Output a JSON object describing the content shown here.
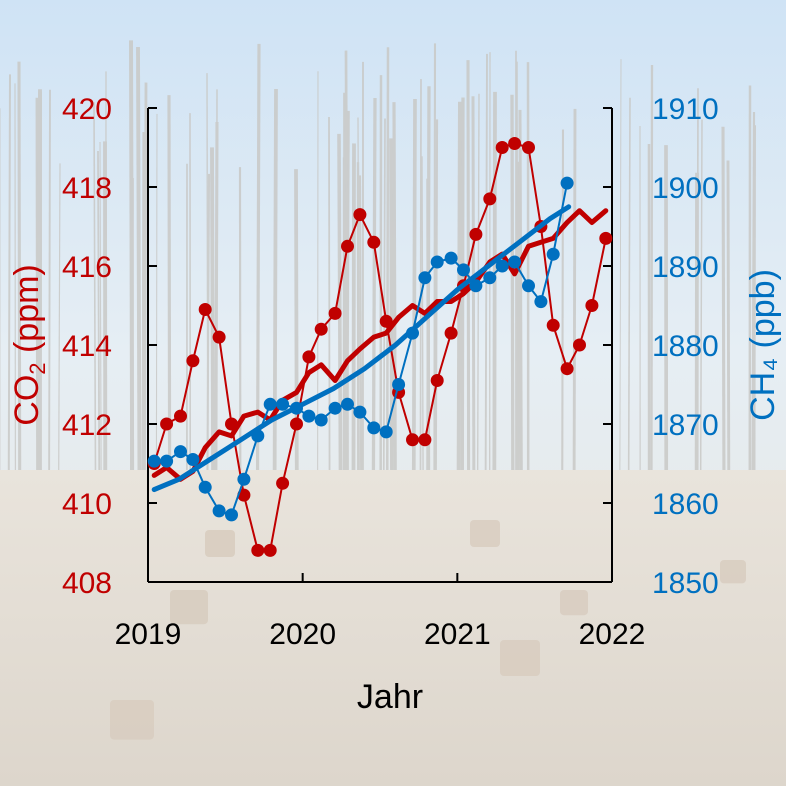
{
  "chart_data": {
    "type": "line",
    "xlabel": "Jahr",
    "xlim": [
      2019,
      2022
    ],
    "xticks": [
      2019,
      2020,
      2021,
      2022
    ],
    "y_left": {
      "label_main": "CO",
      "label_sub": "2",
      "label_unit": " (ppm)",
      "lim": [
        408,
        420
      ],
      "ticks": [
        408,
        410,
        412,
        414,
        416,
        418,
        420
      ],
      "color": "#C00000"
    },
    "y_right": {
      "label": "CH₄ (ppb)",
      "lim": [
        1850,
        1910
      ],
      "ticks": [
        1850,
        1860,
        1870,
        1880,
        1890,
        1900,
        1910
      ],
      "color": "#0070C0"
    },
    "series": [
      {
        "axis": "left",
        "color": "#C00000",
        "style": "markers+line",
        "x": [
          2019.04,
          2019.12,
          2019.21,
          2019.29,
          2019.37,
          2019.46,
          2019.54,
          2019.62,
          2019.71,
          2019.79,
          2019.87,
          2019.96,
          2020.04,
          2020.12,
          2020.21,
          2020.29,
          2020.37,
          2020.46,
          2020.54,
          2020.62,
          2020.71,
          2020.79,
          2020.87,
          2020.96,
          2021.04,
          2021.12,
          2021.21,
          2021.29,
          2021.37,
          2021.46,
          2021.54,
          2021.62,
          2021.71,
          2021.79,
          2021.87,
          2021.96
        ],
        "y": [
          411.0,
          412.0,
          412.2,
          413.6,
          414.9,
          414.2,
          412.0,
          410.2,
          408.8,
          408.8,
          410.5,
          412.0,
          413.7,
          414.4,
          414.8,
          416.5,
          417.3,
          416.6,
          414.6,
          412.8,
          411.6,
          411.6,
          413.1,
          414.3,
          415.5,
          416.8,
          417.7,
          419.0,
          419.1,
          419.0,
          417.0,
          414.5,
          413.4,
          414.0,
          415.0,
          416.7
        ]
      },
      {
        "axis": "left",
        "color": "#C00000",
        "style": "trend",
        "x": [
          2019.04,
          2019.12,
          2019.21,
          2019.29,
          2019.37,
          2019.46,
          2019.54,
          2019.62,
          2019.71,
          2019.79,
          2019.87,
          2019.96,
          2020.04,
          2020.12,
          2020.21,
          2020.29,
          2020.37,
          2020.46,
          2020.54,
          2020.62,
          2020.71,
          2020.79,
          2020.87,
          2020.96,
          2021.04,
          2021.12,
          2021.21,
          2021.29,
          2021.37,
          2021.46,
          2021.54,
          2021.62,
          2021.71,
          2021.79,
          2021.87,
          2021.96
        ],
        "y": [
          410.7,
          410.9,
          410.6,
          410.8,
          411.4,
          411.8,
          411.7,
          412.2,
          412.3,
          412.1,
          412.6,
          412.8,
          413.3,
          413.5,
          413.1,
          413.6,
          413.9,
          414.2,
          414.3,
          414.7,
          415.0,
          414.8,
          415.1,
          415.1,
          415.3,
          415.6,
          416.1,
          416.3,
          415.8,
          416.5,
          416.6,
          416.7,
          417.1,
          417.4,
          417.1,
          417.4
        ]
      },
      {
        "axis": "right",
        "color": "#0070C0",
        "style": "markers+line",
        "x": [
          2019.04,
          2019.12,
          2019.21,
          2019.29,
          2019.37,
          2019.46,
          2019.54,
          2019.62,
          2019.71,
          2019.79,
          2019.87,
          2019.96,
          2020.04,
          2020.12,
          2020.21,
          2020.29,
          2020.37,
          2020.46,
          2020.54,
          2020.62,
          2020.71,
          2020.79,
          2020.87,
          2020.96,
          2021.04,
          2021.12,
          2021.21,
          2021.29,
          2021.37,
          2021.46,
          2021.54,
          2021.62,
          2021.71
        ],
        "y": [
          1865.3,
          1865.3,
          1866.5,
          1865.5,
          1862.0,
          1859.0,
          1858.5,
          1863.0,
          1868.5,
          1872.5,
          1872.5,
          1872.0,
          1871.0,
          1870.5,
          1872.0,
          1872.5,
          1871.5,
          1869.5,
          1869.0,
          1875.0,
          1881.5,
          1888.5,
          1890.5,
          1891.0,
          1889.5,
          1887.5,
          1888.5,
          1890.0,
          1890.5,
          1887.5,
          1885.5,
          1891.5,
          1900.5
        ]
      },
      {
        "axis": "right",
        "color": "#0070C0",
        "style": "trend",
        "x": [
          2019.04,
          2019.2,
          2019.4,
          2019.6,
          2019.8,
          2020.0,
          2020.2,
          2020.4,
          2020.6,
          2020.8,
          2021.0,
          2021.2,
          2021.4,
          2021.6,
          2021.72
        ],
        "y": [
          1861.7,
          1863.0,
          1865.5,
          1868.0,
          1870.5,
          1872.5,
          1874.5,
          1877.0,
          1880.0,
          1883.5,
          1887.0,
          1890.0,
          1893.0,
          1896.0,
          1897.5
        ]
      }
    ]
  }
}
